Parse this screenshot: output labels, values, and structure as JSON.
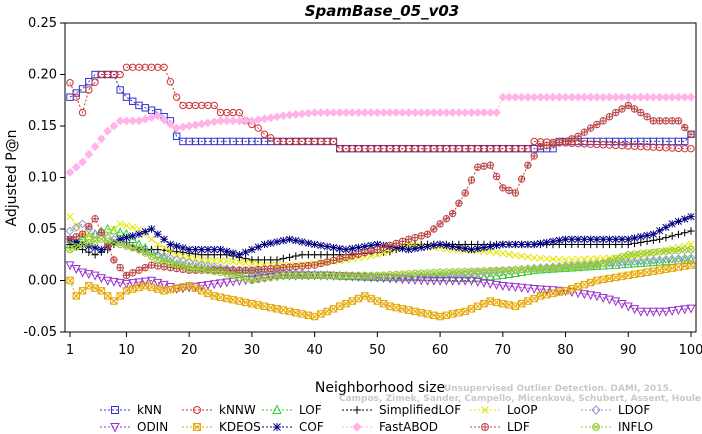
{
  "chart_data": {
    "type": "line",
    "title": "SpamBase_05_v03",
    "xlabel": "Neighborhood size",
    "ylabel": "Adjusted P@n",
    "xlim": [
      1,
      100
    ],
    "ylim": [
      -0.05,
      0.25
    ],
    "x_ticks": [
      1,
      10,
      20,
      30,
      40,
      50,
      60,
      70,
      80,
      90,
      100
    ],
    "y_ticks": [
      -0.05,
      0.0,
      0.05,
      0.1,
      0.15,
      0.2,
      0.25
    ],
    "y_tick_labels": [
      "-0.05",
      "0.00",
      "0.05",
      "0.10",
      "0.15",
      "0.20",
      "0.25"
    ],
    "grid": false,
    "legend_position": "bottom",
    "watermark": "Campos, Zimek, Sander, Campello, Micenková, Schubert, Assent, Houle",
    "watermark2": "Unsupervised Outlier Detection. DAMI, 2015.",
    "series": [
      {
        "name": "kNN",
        "color": "#3333cc",
        "marker": "square",
        "points": [
          [
            1,
            0.178
          ],
          [
            3,
            0.186
          ],
          [
            5,
            0.2
          ],
          [
            8,
            0.2
          ],
          [
            9,
            0.185
          ],
          [
            10,
            0.178
          ],
          [
            12,
            0.17
          ],
          [
            15,
            0.163
          ],
          [
            17,
            0.155
          ],
          [
            18,
            0.14
          ],
          [
            19,
            0.135
          ],
          [
            43,
            0.135
          ],
          [
            44,
            0.128
          ],
          [
            78,
            0.128
          ],
          [
            79,
            0.135
          ],
          [
            99,
            0.135
          ],
          [
            100,
            0.142
          ]
        ]
      },
      {
        "name": "kNNW",
        "color": "#cc3333",
        "marker": "circle",
        "points": [
          [
            1,
            0.192
          ],
          [
            2,
            0.178
          ],
          [
            3,
            0.163
          ],
          [
            4,
            0.185
          ],
          [
            6,
            0.2
          ],
          [
            9,
            0.2
          ],
          [
            10,
            0.207
          ],
          [
            16,
            0.207
          ],
          [
            17,
            0.193
          ],
          [
            18,
            0.178
          ],
          [
            19,
            0.17
          ],
          [
            24,
            0.17
          ],
          [
            25,
            0.163
          ],
          [
            28,
            0.163
          ],
          [
            29,
            0.155
          ],
          [
            31,
            0.148
          ],
          [
            32,
            0.142
          ],
          [
            34,
            0.135
          ],
          [
            43,
            0.135
          ],
          [
            44,
            0.128
          ],
          [
            74,
            0.128
          ],
          [
            75,
            0.135
          ],
          [
            99,
            0.128
          ],
          [
            100,
            0.128
          ]
        ]
      },
      {
        "name": "LOF",
        "color": "#33cc33",
        "marker": "triangle-up",
        "points": [
          [
            1,
            0.035
          ],
          [
            3,
            0.04
          ],
          [
            5,
            0.045
          ],
          [
            7,
            0.05
          ],
          [
            10,
            0.045
          ],
          [
            12,
            0.035
          ],
          [
            15,
            0.025
          ],
          [
            18,
            0.015
          ],
          [
            22,
            0.012
          ],
          [
            28,
            0.008
          ],
          [
            35,
            0.005
          ],
          [
            42,
            0.005
          ],
          [
            50,
            0.003
          ],
          [
            58,
            0.003
          ],
          [
            65,
            0.002
          ],
          [
            70,
            0.005
          ],
          [
            75,
            0.01
          ],
          [
            80,
            0.012
          ],
          [
            88,
            0.015
          ],
          [
            95,
            0.018
          ],
          [
            100,
            0.02
          ]
        ]
      },
      {
        "name": "SimplifiedLOF",
        "color": "#000000",
        "marker": "plus",
        "points": [
          [
            1,
            0.035
          ],
          [
            3,
            0.03
          ],
          [
            5,
            0.025
          ],
          [
            7,
            0.03
          ],
          [
            9,
            0.04
          ],
          [
            12,
            0.03
          ],
          [
            15,
            0.03
          ],
          [
            18,
            0.028
          ],
          [
            22,
            0.025
          ],
          [
            26,
            0.025
          ],
          [
            30,
            0.02
          ],
          [
            34,
            0.02
          ],
          [
            38,
            0.025
          ],
          [
            45,
            0.025
          ],
          [
            52,
            0.028
          ],
          [
            55,
            0.035
          ],
          [
            65,
            0.035
          ],
          [
            72,
            0.035
          ],
          [
            80,
            0.035
          ],
          [
            90,
            0.035
          ],
          [
            95,
            0.04
          ],
          [
            100,
            0.048
          ]
        ]
      },
      {
        "name": "LoOP",
        "color": "#e6e600",
        "marker": "x",
        "points": [
          [
            1,
            0.062
          ],
          [
            3,
            0.045
          ],
          [
            6,
            0.04
          ],
          [
            9,
            0.055
          ],
          [
            12,
            0.05
          ],
          [
            15,
            0.035
          ],
          [
            18,
            0.025
          ],
          [
            22,
            0.02
          ],
          [
            28,
            0.018
          ],
          [
            32,
            0.015
          ],
          [
            38,
            0.015
          ],
          [
            45,
            0.02
          ],
          [
            50,
            0.025
          ],
          [
            55,
            0.035
          ],
          [
            62,
            0.03
          ],
          [
            68,
            0.028
          ],
          [
            75,
            0.022
          ],
          [
            80,
            0.02
          ],
          [
            88,
            0.022
          ],
          [
            95,
            0.028
          ],
          [
            100,
            0.035
          ]
        ]
      },
      {
        "name": "LDOF",
        "color": "#9999cc",
        "marker": "diamond",
        "points": [
          [
            1,
            0.048
          ],
          [
            3,
            0.055
          ],
          [
            5,
            0.045
          ],
          [
            8,
            0.04
          ],
          [
            12,
            0.03
          ],
          [
            15,
            0.025
          ],
          [
            18,
            0.02
          ],
          [
            22,
            0.015
          ],
          [
            28,
            0.01
          ],
          [
            35,
            0.008
          ],
          [
            42,
            0.005
          ],
          [
            50,
            0.003
          ],
          [
            60,
            0.005
          ],
          [
            68,
            0.008
          ],
          [
            75,
            0.012
          ],
          [
            82,
            0.015
          ],
          [
            90,
            0.018
          ],
          [
            100,
            0.022
          ]
        ]
      },
      {
        "name": "ODIN",
        "color": "#9933cc",
        "marker": "triangle-down",
        "points": [
          [
            1,
            0.015
          ],
          [
            3,
            0.008
          ],
          [
            5,
            0.005
          ],
          [
            7,
            0.0
          ],
          [
            10,
            -0.003
          ],
          [
            14,
            0.0
          ],
          [
            18,
            -0.008
          ],
          [
            22,
            -0.005
          ],
          [
            28,
            0.0
          ],
          [
            35,
            0.005
          ],
          [
            42,
            0.005
          ],
          [
            50,
            0.003
          ],
          [
            58,
            0.0
          ],
          [
            65,
            0.0
          ],
          [
            70,
            -0.005
          ],
          [
            75,
            -0.008
          ],
          [
            80,
            -0.01
          ],
          [
            85,
            -0.015
          ],
          [
            88,
            -0.02
          ],
          [
            92,
            -0.03
          ],
          [
            96,
            -0.03
          ],
          [
            100,
            -0.027
          ]
        ]
      },
      {
        "name": "KDEOS",
        "color": "#e6a600",
        "marker": "square-x",
        "points": [
          [
            1,
            0.0
          ],
          [
            2,
            -0.015
          ],
          [
            4,
            -0.005
          ],
          [
            6,
            -0.01
          ],
          [
            8,
            -0.02
          ],
          [
            10,
            -0.01
          ],
          [
            13,
            -0.005
          ],
          [
            16,
            -0.01
          ],
          [
            20,
            -0.005
          ],
          [
            24,
            -0.015
          ],
          [
            28,
            -0.02
          ],
          [
            32,
            -0.025
          ],
          [
            36,
            -0.03
          ],
          [
            40,
            -0.035
          ],
          [
            44,
            -0.025
          ],
          [
            48,
            -0.015
          ],
          [
            52,
            -0.025
          ],
          [
            56,
            -0.03
          ],
          [
            60,
            -0.035
          ],
          [
            64,
            -0.03
          ],
          [
            68,
            -0.02
          ],
          [
            72,
            -0.025
          ],
          [
            76,
            -0.015
          ],
          [
            80,
            -0.01
          ],
          [
            85,
            0.0
          ],
          [
            90,
            0.005
          ],
          [
            95,
            0.01
          ],
          [
            100,
            0.015
          ]
        ]
      },
      {
        "name": "COF",
        "color": "#000080",
        "marker": "asterisk",
        "points": [
          [
            1,
            0.04
          ],
          [
            3,
            0.035
          ],
          [
            6,
            0.03
          ],
          [
            9,
            0.04
          ],
          [
            12,
            0.045
          ],
          [
            14,
            0.05
          ],
          [
            17,
            0.035
          ],
          [
            20,
            0.03
          ],
          [
            25,
            0.03
          ],
          [
            28,
            0.025
          ],
          [
            32,
            0.035
          ],
          [
            36,
            0.04
          ],
          [
            40,
            0.035
          ],
          [
            45,
            0.03
          ],
          [
            50,
            0.035
          ],
          [
            55,
            0.03
          ],
          [
            60,
            0.035
          ],
          [
            65,
            0.03
          ],
          [
            70,
            0.035
          ],
          [
            75,
            0.035
          ],
          [
            80,
            0.04
          ],
          [
            85,
            0.04
          ],
          [
            90,
            0.04
          ],
          [
            94,
            0.045
          ],
          [
            97,
            0.055
          ],
          [
            100,
            0.062
          ]
        ]
      },
      {
        "name": "FastABOD",
        "color": "#ffb3e6",
        "marker": "diamond-filled",
        "points": [
          [
            1,
            0.105
          ],
          [
            3,
            0.115
          ],
          [
            5,
            0.13
          ],
          [
            7,
            0.145
          ],
          [
            9,
            0.155
          ],
          [
            12,
            0.155
          ],
          [
            15,
            0.16
          ],
          [
            18,
            0.148
          ],
          [
            20,
            0.15
          ],
          [
            25,
            0.155
          ],
          [
            30,
            0.155
          ],
          [
            35,
            0.16
          ],
          [
            40,
            0.163
          ],
          [
            50,
            0.163
          ],
          [
            60,
            0.163
          ],
          [
            69,
            0.163
          ],
          [
            70,
            0.178
          ],
          [
            80,
            0.178
          ],
          [
            90,
            0.178
          ],
          [
            100,
            0.178
          ]
        ]
      },
      {
        "name": "LDF",
        "color": "#bb4444",
        "marker": "circle-plus",
        "points": [
          [
            1,
            0.04
          ],
          [
            3,
            0.045
          ],
          [
            5,
            0.06
          ],
          [
            8,
            0.02
          ],
          [
            10,
            0.005
          ],
          [
            14,
            0.015
          ],
          [
            20,
            0.01
          ],
          [
            30,
            0.01
          ],
          [
            40,
            0.015
          ],
          [
            50,
            0.03
          ],
          [
            55,
            0.04
          ],
          [
            58,
            0.045
          ],
          [
            60,
            0.055
          ],
          [
            62,
            0.065
          ],
          [
            64,
            0.085
          ],
          [
            66,
            0.11
          ],
          [
            68,
            0.112
          ],
          [
            70,
            0.09
          ],
          [
            72,
            0.085
          ],
          [
            74,
            0.112
          ],
          [
            76,
            0.13
          ],
          [
            80,
            0.135
          ],
          [
            82,
            0.14
          ],
          [
            84,
            0.148
          ],
          [
            86,
            0.155
          ],
          [
            88,
            0.163
          ],
          [
            90,
            0.17
          ],
          [
            92,
            0.163
          ],
          [
            94,
            0.155
          ],
          [
            96,
            0.155
          ],
          [
            98,
            0.155
          ],
          [
            100,
            0.142
          ]
        ]
      },
      {
        "name": "INFLO",
        "color": "#99cc33",
        "marker": "circle-x",
        "points": [
          [
            1,
            0.03
          ],
          [
            3,
            0.035
          ],
          [
            6,
            0.04
          ],
          [
            9,
            0.035
          ],
          [
            12,
            0.03
          ],
          [
            15,
            0.02
          ],
          [
            20,
            0.012
          ],
          [
            25,
            0.008
          ],
          [
            30,
            0.0
          ],
          [
            35,
            0.005
          ],
          [
            40,
            0.005
          ],
          [
            50,
            0.005
          ],
          [
            60,
            0.008
          ],
          [
            70,
            0.01
          ],
          [
            78,
            0.012
          ],
          [
            85,
            0.015
          ],
          [
            90,
            0.025
          ],
          [
            95,
            0.028
          ],
          [
            100,
            0.03
          ]
        ]
      }
    ]
  }
}
